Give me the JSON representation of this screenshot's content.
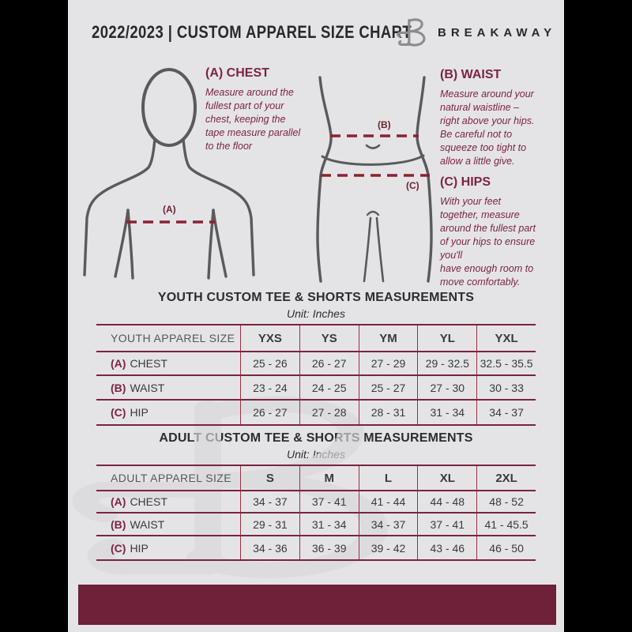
{
  "header": {
    "title": "2022/2023  |  CUSTOM APPAREL SIZE CHART",
    "brand": "BREAKAWAY",
    "logo_icon": "breakaway-b-logo"
  },
  "measure_guide": {
    "chest": {
      "heading": "(A) CHEST",
      "body": "Measure around the\nfullest part of your\nchest, keeping the\ntape measure parallel\nto the floor"
    },
    "waist": {
      "heading": "(B) WAIST",
      "body": "Measure around your\nnatural waistline –\nright above your hips.\nBe careful not to\nsqueeze too tight to\nallow a little give."
    },
    "hips": {
      "heading": "(C) HIPS",
      "body": "With your feet\ntogether, measure\naround the fullest part\nof your hips to ensure\nyou'll\nhave enough room to\nmove comfortably."
    },
    "labels": {
      "chest": "(A)",
      "waist": "(B)",
      "hips": "(C)"
    }
  },
  "tables": {
    "youth": {
      "title": "YOUTH CUSTOM TEE & SHORTS MEASUREMENTS",
      "unit": "Unit: Inches",
      "header": [
        "YOUTH APPAREL SIZE",
        "YXS",
        "YS",
        "YM",
        "YL",
        "YXL"
      ],
      "rows": [
        {
          "prefix": "(A)",
          "label": "CHEST",
          "values": [
            "25 - 26",
            "26 - 27",
            "27 - 29",
            "29 - 32.5",
            "32.5 - 35.5"
          ]
        },
        {
          "prefix": "(B)",
          "label": "WAIST",
          "values": [
            "23 - 24",
            "24 - 25",
            "25 - 27",
            "27 - 30",
            "30 - 33"
          ]
        },
        {
          "prefix": "(C)",
          "label": "HIP",
          "values": [
            "26 - 27",
            "27 - 28",
            "28 - 31",
            "31 - 34",
            "34 - 37"
          ]
        }
      ]
    },
    "adult": {
      "title": "ADULT CUSTOM TEE & SHORTS MEASUREMENTS",
      "unit": "Unit: Inches",
      "header": [
        "ADULT APPAREL SIZE",
        "S",
        "M",
        "L",
        "XL",
        "2XL"
      ],
      "rows": [
        {
          "prefix": "(A)",
          "label": "CHEST",
          "values": [
            "34 - 37",
            "37 - 41",
            "41 - 44",
            "44 - 48",
            "48 - 52"
          ]
        },
        {
          "prefix": "(B)",
          "label": "WAIST",
          "values": [
            "29 - 31",
            "31 - 34",
            "34 - 37",
            "37 - 41",
            "41 - 45.5"
          ]
        },
        {
          "prefix": "(C)",
          "label": "HIP",
          "values": [
            "34 - 36",
            "36 - 39",
            "39 - 42",
            "43 - 46",
            "46 - 50"
          ]
        }
      ]
    }
  },
  "watermark_glyph": "B",
  "colors": {
    "page_background": "#e4e4e6",
    "pillarbox": "#000000",
    "maroon_bar": "#6e2139",
    "maroon_heading": "#7d2342",
    "table_rule": "#7b2340",
    "figure_stroke": "#595a5c",
    "text_dark": "#2a2a2c"
  }
}
